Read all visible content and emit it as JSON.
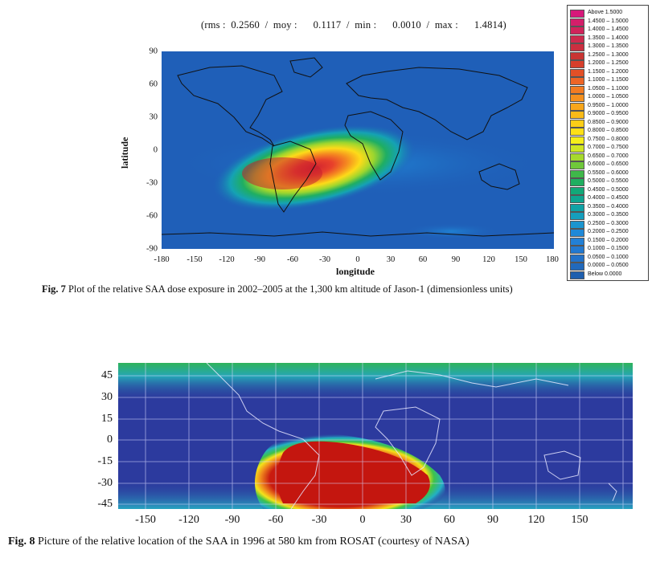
{
  "fig7": {
    "stats_text": "(rms :  0.2560  /  moy :      0.1117  /  min :      0.0010  /  max :      1.4814)",
    "xlabel": "longitude",
    "ylabel": "latitude",
    "x_ticks": [
      "-180",
      "-150",
      "-120",
      "-90",
      "-60",
      "-30",
      "0",
      "30",
      "60",
      "90",
      "120",
      "150",
      "180"
    ],
    "y_ticks": [
      "90",
      "60",
      "30",
      "0",
      "-30",
      "-60",
      "-90"
    ],
    "caption_label": "Fig. 7",
    "caption_text": " Plot of the relative SAA dose exposure in 2002–2005 at the 1,300 km altitude of Jason-1 (dimensionless units)",
    "legend": [
      {
        "label": "Above    1.5000",
        "color": "#d6187a"
      },
      {
        "label": "1.4500 – 1.5000",
        "color": "#d31f6a"
      },
      {
        "label": "1.4000 – 1.4500",
        "color": "#d0245b"
      },
      {
        "label": "1.3500 – 1.4000",
        "color": "#cd2a4d"
      },
      {
        "label": "1.3000 – 1.3500",
        "color": "#cb2f40"
      },
      {
        "label": "1.2500 – 1.3000",
        "color": "#c93533"
      },
      {
        "label": "1.2000 – 1.2500",
        "color": "#d63f2c"
      },
      {
        "label": "1.1500 – 1.2000",
        "color": "#e35027"
      },
      {
        "label": "1.1000 – 1.1500",
        "color": "#ee6526"
      },
      {
        "label": "1.0500 – 1.1000",
        "color": "#f27b22"
      },
      {
        "label": "1.0000 – 1.0500",
        "color": "#f5901e"
      },
      {
        "label": "0.9500 – 1.0000",
        "color": "#f8a61b"
      },
      {
        "label": "0.9000 – 0.9500",
        "color": "#fabb18"
      },
      {
        "label": "0.8500 – 0.9000",
        "color": "#fcce17"
      },
      {
        "label": "0.8000 – 0.8500",
        "color": "#fde017"
      },
      {
        "label": "0.7500 – 0.8000",
        "color": "#f5ee1a"
      },
      {
        "label": "0.7000 – 0.7500",
        "color": "#cfe623"
      },
      {
        "label": "0.6500 – 0.7000",
        "color": "#a6d92d"
      },
      {
        "label": "0.6000 – 0.6500",
        "color": "#6fc83a"
      },
      {
        "label": "0.5500 – 0.6000",
        "color": "#3fb84a"
      },
      {
        "label": "0.5000 – 0.5500",
        "color": "#1fae60"
      },
      {
        "label": "0.4500 – 0.5000",
        "color": "#12a878"
      },
      {
        "label": "0.4000 – 0.4500",
        "color": "#0ea590"
      },
      {
        "label": "0.3500 – 0.4000",
        "color": "#10a2a6"
      },
      {
        "label": "0.3000 – 0.3500",
        "color": "#159ebd"
      },
      {
        "label": "0.2500 – 0.3000",
        "color": "#1b95cf"
      },
      {
        "label": "0.2000 – 0.2500",
        "color": "#1f89d8"
      },
      {
        "label": "0.1500 – 0.2000",
        "color": "#2280d6"
      },
      {
        "label": "0.1000 – 0.1500",
        "color": "#2379d0"
      },
      {
        "label": "0.0500 – 0.1000",
        "color": "#2472c8"
      },
      {
        "label": "0.0000 – 0.0500",
        "color": "#2169bc"
      },
      {
        "label": "Below    0.0000",
        "color": "#1e5fae"
      }
    ]
  },
  "fig8": {
    "x_ticks": [
      "-150",
      "-120",
      "-90",
      "-60",
      "-30",
      "0",
      "30",
      "60",
      "90",
      "120",
      "150"
    ],
    "y_ticks": [
      "45",
      "30",
      "15",
      "0",
      "-15",
      "-30",
      "-45"
    ],
    "caption_label": "Fig. 8",
    "caption_text": " Picture of the relative location of the SAA in 1996 at 580 km from ROSAT (courtesy of NASA)"
  },
  "colors": {
    "ocean_fig7": "#1f5fb8",
    "bg_fig8": "#2c3a9e"
  }
}
